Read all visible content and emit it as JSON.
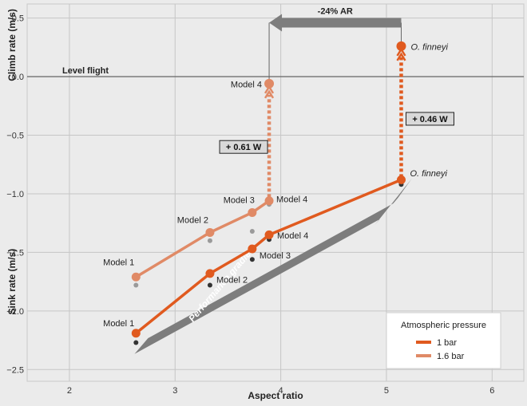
{
  "chart_data": {
    "type": "line",
    "xlabel": "Aspect ratio",
    "ylabel_top": "Climb rate (m/s)",
    "ylabel_bottom": "Sink rate (m/s)",
    "xlim": [
      1.6,
      6.3
    ],
    "ylim": [
      -2.6,
      0.62
    ],
    "xticks": [
      2,
      3,
      4,
      5,
      6
    ],
    "xtick_labels": [
      "2",
      "3",
      "4",
      "5",
      "6"
    ],
    "yticks": [
      0.5,
      0.0,
      -0.5,
      -1.0,
      -1.5,
      -2.0,
      -2.5
    ],
    "ytick_labels": [
      "0.5",
      "0.0",
      "−0.5",
      "−1.0",
      "−1.5",
      "−2.0",
      "−2.5"
    ],
    "grid": true,
    "reference_line": {
      "y": 0.0,
      "label": "Level flight"
    },
    "series": [
      {
        "name": "1 bar",
        "color": "#e05a1f",
        "points": [
          {
            "label": "Model 1",
            "x": 2.63,
            "y": -2.19
          },
          {
            "label": "Model 2",
            "x": 3.33,
            "y": -1.68
          },
          {
            "label": "Model 3",
            "x": 3.73,
            "y": -1.47
          },
          {
            "label": "Model 4",
            "x": 3.89,
            "y": -1.35
          },
          {
            "label": "O. finneyi",
            "x": 5.14,
            "y": -0.88
          }
        ],
        "raw_points": [
          {
            "x": 2.63,
            "y": -2.27
          },
          {
            "x": 3.33,
            "y": -1.78
          },
          {
            "x": 3.73,
            "y": -1.56
          },
          {
            "x": 3.89,
            "y": -1.39
          },
          {
            "x": 5.14,
            "y": -0.92
          }
        ]
      },
      {
        "name": "1.6 bar",
        "color": "#e08a66",
        "points": [
          {
            "label": "Model 1",
            "x": 2.63,
            "y": -1.71
          },
          {
            "label": "Model 2",
            "x": 3.33,
            "y": -1.33
          },
          {
            "label": "Model 3",
            "x": 3.73,
            "y": -1.16
          },
          {
            "label": "Model 4",
            "x": 3.89,
            "y": -1.06
          }
        ],
        "raw_points": [
          {
            "x": 2.63,
            "y": -1.78
          },
          {
            "x": 3.33,
            "y": -1.4
          },
          {
            "x": 3.73,
            "y": -1.32
          },
          {
            "x": 3.89,
            "y": -1.09
          }
        ]
      }
    ],
    "highlight_points": [
      {
        "label": "Model 4",
        "x": 3.89,
        "y": -0.06,
        "color": "#e08a66"
      },
      {
        "label": "O. finneyi",
        "x": 5.14,
        "y": 0.26,
        "color": "#e05a1f"
      }
    ],
    "annotations": {
      "ar_arrow_label": "-24% AR",
      "power_model4": "+ 0.61 W",
      "power_finneyi": "+ 0.46 W",
      "gradient_label": "Performance gradient"
    },
    "legend": {
      "title": "Atmospheric pressure",
      "position": "bottom-right",
      "items": [
        {
          "label": "1 bar",
          "color": "#e05a1f"
        },
        {
          "label": "1.6 bar",
          "color": "#e08a66"
        }
      ]
    }
  }
}
